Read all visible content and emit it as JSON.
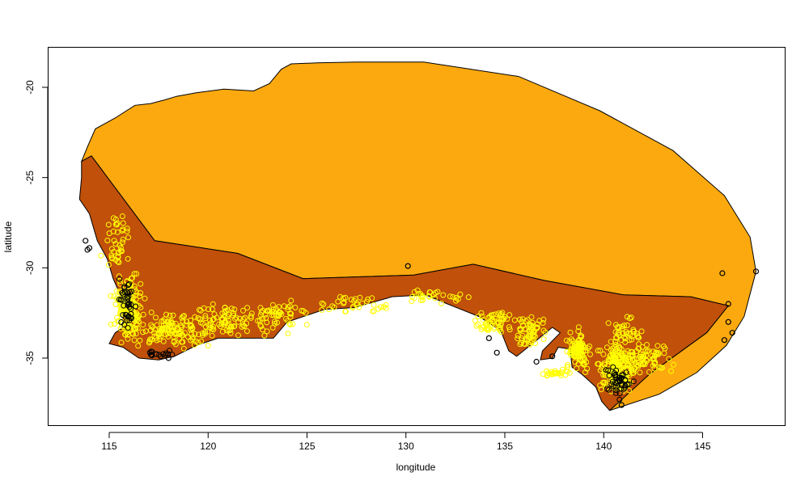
{
  "chart_data": {
    "type": "map",
    "title": "",
    "xlabel": "longitude",
    "ylabel": "latitude",
    "xlim": [
      112.3,
      149.4
    ],
    "ylim": [
      -38.7,
      -17.8
    ],
    "x_ticks": [
      115,
      120,
      125,
      130,
      135,
      140,
      145
    ],
    "y_ticks": [
      -20,
      -25,
      -30,
      -35
    ],
    "x_tick_labels": [
      "115",
      "120",
      "125",
      "130",
      "135",
      "140",
      "145"
    ],
    "y_tick_labels": [
      "-20",
      "-25",
      "-30",
      "-35"
    ],
    "colors": {
      "outer_region": "#FBA90F",
      "inner_region": "#C0500A",
      "points_highlight": "#FFFF00",
      "points_outlier": "#000000"
    },
    "regions": [
      {
        "fill": "outer_region",
        "polygon": [
          [
            130.9,
            -18.6
          ],
          [
            127.5,
            -18.6
          ],
          [
            125.5,
            -18.65
          ],
          [
            124.2,
            -18.7
          ],
          [
            123.7,
            -19.0
          ],
          [
            123.1,
            -19.8
          ],
          [
            122.3,
            -20.2
          ],
          [
            120.8,
            -20.1
          ],
          [
            119.4,
            -20.3
          ],
          [
            118.4,
            -20.5
          ],
          [
            117.8,
            -20.7
          ],
          [
            117.1,
            -20.9
          ],
          [
            116.3,
            -21.0
          ],
          [
            115.3,
            -21.7
          ],
          [
            114.3,
            -22.3
          ],
          [
            113.9,
            -23.3
          ],
          [
            113.6,
            -24.1
          ],
          [
            114.1,
            -23.8
          ],
          [
            117.3,
            -28.5
          ],
          [
            121.5,
            -29.2
          ],
          [
            124.8,
            -30.6
          ],
          [
            130.4,
            -30.4
          ],
          [
            133.4,
            -29.8
          ],
          [
            137.0,
            -30.7
          ],
          [
            141.0,
            -31.5
          ],
          [
            144.4,
            -31.6
          ],
          [
            146.3,
            -32.1
          ],
          [
            145.2,
            -33.6
          ],
          [
            142.3,
            -35.9
          ],
          [
            140.3,
            -37.9
          ],
          [
            142.8,
            -37.0
          ],
          [
            144.7,
            -35.8
          ],
          [
            146.2,
            -34.3
          ],
          [
            147.1,
            -32.7
          ],
          [
            147.7,
            -30.2
          ],
          [
            147.4,
            -28.3
          ],
          [
            146.1,
            -26.0
          ],
          [
            143.5,
            -23.5
          ],
          [
            139.8,
            -21.3
          ],
          [
            135.7,
            -19.4
          ],
          [
            130.9,
            -18.6
          ]
        ]
      },
      {
        "fill": "inner_region",
        "polygon": [
          [
            113.6,
            -24.1
          ],
          [
            114.1,
            -23.8
          ],
          [
            117.3,
            -28.5
          ],
          [
            121.5,
            -29.2
          ],
          [
            124.8,
            -30.6
          ],
          [
            130.4,
            -30.4
          ],
          [
            133.4,
            -29.8
          ],
          [
            137.0,
            -30.7
          ],
          [
            141.0,
            -31.5
          ],
          [
            144.4,
            -31.6
          ],
          [
            146.3,
            -32.1
          ],
          [
            145.2,
            -33.6
          ],
          [
            142.3,
            -35.9
          ],
          [
            140.3,
            -37.9
          ],
          [
            139.9,
            -37.4
          ],
          [
            139.6,
            -36.6
          ],
          [
            138.9,
            -35.9
          ],
          [
            138.4,
            -35.5
          ],
          [
            138.3,
            -34.5
          ],
          [
            137.7,
            -34.4
          ],
          [
            137.4,
            -35.0
          ],
          [
            136.8,
            -35.1
          ],
          [
            136.9,
            -34.6
          ],
          [
            137.8,
            -33.6
          ],
          [
            137.4,
            -33.3
          ],
          [
            136.4,
            -34.2
          ],
          [
            135.6,
            -34.9
          ],
          [
            135.2,
            -34.6
          ],
          [
            134.8,
            -33.5
          ],
          [
            133.7,
            -32.7
          ],
          [
            132.1,
            -32.0
          ],
          [
            131.0,
            -31.5
          ],
          [
            129.3,
            -31.6
          ],
          [
            127.4,
            -32.2
          ],
          [
            125.9,
            -32.3
          ],
          [
            124.0,
            -33.0
          ],
          [
            123.3,
            -33.9
          ],
          [
            121.9,
            -33.9
          ],
          [
            120.5,
            -33.9
          ],
          [
            119.4,
            -34.3
          ],
          [
            118.3,
            -34.9
          ],
          [
            117.5,
            -35.1
          ],
          [
            116.5,
            -35.0
          ],
          [
            115.7,
            -34.4
          ],
          [
            115.0,
            -34.2
          ],
          [
            115.3,
            -33.6
          ],
          [
            115.7,
            -33.3
          ],
          [
            115.7,
            -32.4
          ],
          [
            115.6,
            -31.6
          ],
          [
            115.2,
            -30.6
          ],
          [
            114.9,
            -29.5
          ],
          [
            114.4,
            -28.5
          ],
          [
            114.0,
            -27.0
          ],
          [
            113.5,
            -26.2
          ],
          [
            113.6,
            -25.0
          ],
          [
            113.6,
            -24.1
          ]
        ]
      }
    ],
    "point_clusters": [
      {
        "center": [
          116.0,
          -32.3
        ],
        "spread": [
          0.7,
          1.6
        ],
        "count": 170,
        "color": "points_highlight"
      },
      {
        "center": [
          118.3,
          -33.5
        ],
        "spread": [
          1.6,
          0.8
        ],
        "count": 120,
        "color": "points_highlight"
      },
      {
        "center": [
          120.8,
          -33.0
        ],
        "spread": [
          1.5,
          1.0
        ],
        "count": 80,
        "color": "points_highlight"
      },
      {
        "center": [
          115.4,
          -28.5
        ],
        "spread": [
          0.7,
          1.4
        ],
        "count": 40,
        "color": "points_highlight"
      },
      {
        "center": [
          123.5,
          -32.7
        ],
        "spread": [
          1.3,
          0.9
        ],
        "count": 55,
        "color": "points_highlight"
      },
      {
        "center": [
          127.5,
          -32.0
        ],
        "spread": [
          1.4,
          0.5
        ],
        "count": 35,
        "color": "points_highlight"
      },
      {
        "center": [
          131.5,
          -31.6
        ],
        "spread": [
          1.5,
          0.4
        ],
        "count": 30,
        "color": "points_highlight"
      },
      {
        "center": [
          134.5,
          -33.0
        ],
        "spread": [
          1.0,
          0.7
        ],
        "count": 55,
        "color": "points_highlight"
      },
      {
        "center": [
          136.3,
          -33.6
        ],
        "spread": [
          0.8,
          0.9
        ],
        "count": 60,
        "color": "points_highlight"
      },
      {
        "center": [
          137.5,
          -35.8
        ],
        "spread": [
          0.6,
          0.2
        ],
        "count": 25,
        "color": "points_highlight"
      },
      {
        "center": [
          138.7,
          -34.6
        ],
        "spread": [
          0.6,
          0.9
        ],
        "count": 110,
        "color": "points_highlight"
      },
      {
        "center": [
          140.7,
          -35.6
        ],
        "spread": [
          0.8,
          1.2
        ],
        "count": 220,
        "color": "points_highlight"
      },
      {
        "center": [
          142.2,
          -35.0
        ],
        "spread": [
          1.2,
          0.8
        ],
        "count": 70,
        "color": "points_highlight"
      },
      {
        "center": [
          141.0,
          -33.5
        ],
        "spread": [
          1.0,
          0.9
        ],
        "count": 40,
        "color": "points_highlight"
      },
      {
        "center": [
          115.9,
          -32.0
        ],
        "spread": [
          0.4,
          1.4
        ],
        "count": 40,
        "color": "points_outlier"
      },
      {
        "center": [
          140.7,
          -36.3
        ],
        "spread": [
          0.6,
          0.8
        ],
        "count": 45,
        "color": "points_outlier"
      },
      {
        "center": [
          117.5,
          -34.7
        ],
        "spread": [
          0.9,
          0.3
        ],
        "count": 15,
        "color": "points_outlier"
      }
    ],
    "outlier_points": [
      [
        113.8,
        -28.5
      ],
      [
        114.0,
        -28.9
      ],
      [
        113.9,
        -29.0
      ],
      [
        130.1,
        -29.9
      ],
      [
        146.0,
        -30.3
      ],
      [
        147.7,
        -30.2
      ],
      [
        146.3,
        -32.0
      ],
      [
        146.3,
        -33.0
      ],
      [
        146.5,
        -33.6
      ],
      [
        146.1,
        -34.0
      ],
      [
        140.9,
        -37.6
      ],
      [
        137.4,
        -34.9
      ],
      [
        136.6,
        -35.2
      ],
      [
        134.2,
        -33.9
      ],
      [
        134.6,
        -34.7
      ],
      [
        118.0,
        -35.0
      ],
      [
        117.6,
        -34.9
      ]
    ]
  }
}
